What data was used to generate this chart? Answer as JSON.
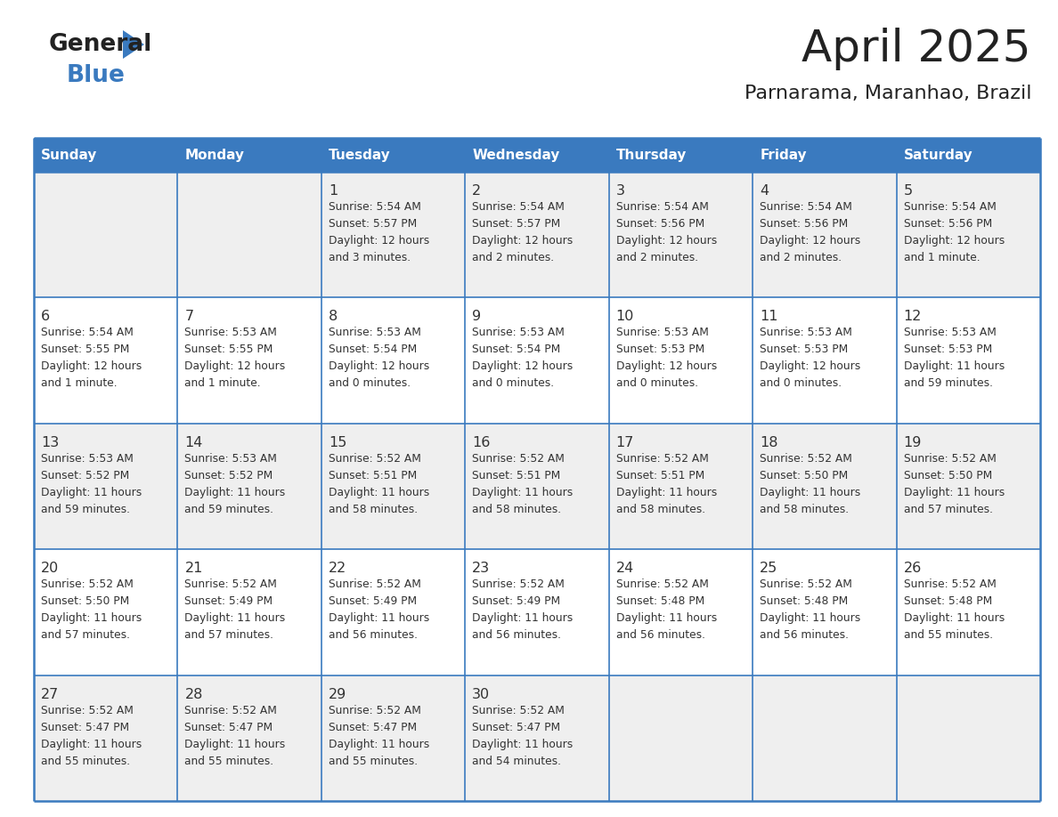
{
  "title": "April 2025",
  "subtitle": "Parnarama, Maranhao, Brazil",
  "header_bg_color": "#3a7abf",
  "header_text_color": "#ffffff",
  "day_names": [
    "Sunday",
    "Monday",
    "Tuesday",
    "Wednesday",
    "Thursday",
    "Friday",
    "Saturday"
  ],
  "row_bg_colors": [
    "#efefef",
    "#ffffff"
  ],
  "grid_line_color": "#3a7abf",
  "text_color": "#333333",
  "title_color": "#222222",
  "logo_general_color": "#222222",
  "logo_blue_color": "#3a7abf",
  "weeks": [
    [
      {
        "day": null,
        "sunrise": null,
        "sunset": null,
        "daylight": null
      },
      {
        "day": null,
        "sunrise": null,
        "sunset": null,
        "daylight": null
      },
      {
        "day": 1,
        "sunrise": "5:54 AM",
        "sunset": "5:57 PM",
        "daylight": "12 hours and 3 minutes."
      },
      {
        "day": 2,
        "sunrise": "5:54 AM",
        "sunset": "5:57 PM",
        "daylight": "12 hours and 2 minutes."
      },
      {
        "day": 3,
        "sunrise": "5:54 AM",
        "sunset": "5:56 PM",
        "daylight": "12 hours and 2 minutes."
      },
      {
        "day": 4,
        "sunrise": "5:54 AM",
        "sunset": "5:56 PM",
        "daylight": "12 hours and 2 minutes."
      },
      {
        "day": 5,
        "sunrise": "5:54 AM",
        "sunset": "5:56 PM",
        "daylight": "12 hours and 1 minute."
      }
    ],
    [
      {
        "day": 6,
        "sunrise": "5:54 AM",
        "sunset": "5:55 PM",
        "daylight": "12 hours and 1 minute."
      },
      {
        "day": 7,
        "sunrise": "5:53 AM",
        "sunset": "5:55 PM",
        "daylight": "12 hours and 1 minute."
      },
      {
        "day": 8,
        "sunrise": "5:53 AM",
        "sunset": "5:54 PM",
        "daylight": "12 hours and 0 minutes."
      },
      {
        "day": 9,
        "sunrise": "5:53 AM",
        "sunset": "5:54 PM",
        "daylight": "12 hours and 0 minutes."
      },
      {
        "day": 10,
        "sunrise": "5:53 AM",
        "sunset": "5:53 PM",
        "daylight": "12 hours and 0 minutes."
      },
      {
        "day": 11,
        "sunrise": "5:53 AM",
        "sunset": "5:53 PM",
        "daylight": "12 hours and 0 minutes."
      },
      {
        "day": 12,
        "sunrise": "5:53 AM",
        "sunset": "5:53 PM",
        "daylight": "11 hours and 59 minutes."
      }
    ],
    [
      {
        "day": 13,
        "sunrise": "5:53 AM",
        "sunset": "5:52 PM",
        "daylight": "11 hours and 59 minutes."
      },
      {
        "day": 14,
        "sunrise": "5:53 AM",
        "sunset": "5:52 PM",
        "daylight": "11 hours and 59 minutes."
      },
      {
        "day": 15,
        "sunrise": "5:52 AM",
        "sunset": "5:51 PM",
        "daylight": "11 hours and 58 minutes."
      },
      {
        "day": 16,
        "sunrise": "5:52 AM",
        "sunset": "5:51 PM",
        "daylight": "11 hours and 58 minutes."
      },
      {
        "day": 17,
        "sunrise": "5:52 AM",
        "sunset": "5:51 PM",
        "daylight": "11 hours and 58 minutes."
      },
      {
        "day": 18,
        "sunrise": "5:52 AM",
        "sunset": "5:50 PM",
        "daylight": "11 hours and 58 minutes."
      },
      {
        "day": 19,
        "sunrise": "5:52 AM",
        "sunset": "5:50 PM",
        "daylight": "11 hours and 57 minutes."
      }
    ],
    [
      {
        "day": 20,
        "sunrise": "5:52 AM",
        "sunset": "5:50 PM",
        "daylight": "11 hours and 57 minutes."
      },
      {
        "day": 21,
        "sunrise": "5:52 AM",
        "sunset": "5:49 PM",
        "daylight": "11 hours and 57 minutes."
      },
      {
        "day": 22,
        "sunrise": "5:52 AM",
        "sunset": "5:49 PM",
        "daylight": "11 hours and 56 minutes."
      },
      {
        "day": 23,
        "sunrise": "5:52 AM",
        "sunset": "5:49 PM",
        "daylight": "11 hours and 56 minutes."
      },
      {
        "day": 24,
        "sunrise": "5:52 AM",
        "sunset": "5:48 PM",
        "daylight": "11 hours and 56 minutes."
      },
      {
        "day": 25,
        "sunrise": "5:52 AM",
        "sunset": "5:48 PM",
        "daylight": "11 hours and 56 minutes."
      },
      {
        "day": 26,
        "sunrise": "5:52 AM",
        "sunset": "5:48 PM",
        "daylight": "11 hours and 55 minutes."
      }
    ],
    [
      {
        "day": 27,
        "sunrise": "5:52 AM",
        "sunset": "5:47 PM",
        "daylight": "11 hours and 55 minutes."
      },
      {
        "day": 28,
        "sunrise": "5:52 AM",
        "sunset": "5:47 PM",
        "daylight": "11 hours and 55 minutes."
      },
      {
        "day": 29,
        "sunrise": "5:52 AM",
        "sunset": "5:47 PM",
        "daylight": "11 hours and 55 minutes."
      },
      {
        "day": 30,
        "sunrise": "5:52 AM",
        "sunset": "5:47 PM",
        "daylight": "11 hours and 54 minutes."
      },
      {
        "day": null,
        "sunrise": null,
        "sunset": null,
        "daylight": null
      },
      {
        "day": null,
        "sunrise": null,
        "sunset": null,
        "daylight": null
      },
      {
        "day": null,
        "sunrise": null,
        "sunset": null,
        "daylight": null
      }
    ]
  ],
  "fig_width": 11.88,
  "fig_height": 9.18,
  "dpi": 100
}
